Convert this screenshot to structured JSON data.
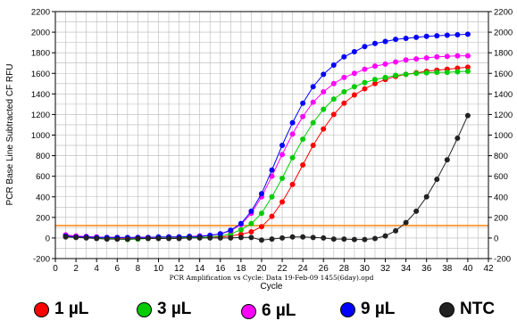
{
  "chart_data": {
    "type": "line",
    "ylabel": "PCR Base Line Subtracted CF RFU",
    "xlabel": "Cycle",
    "subtitle": "PCR Amplification vs Cycle: Data 19-Feb-09 1455(6day).opd",
    "xlim": [
      0,
      42
    ],
    "ylim": [
      -200,
      2200
    ],
    "xticks": [
      0,
      2,
      4,
      6,
      8,
      10,
      12,
      14,
      16,
      18,
      20,
      22,
      24,
      26,
      28,
      30,
      32,
      34,
      36,
      38,
      40,
      42
    ],
    "yticks": [
      -200,
      0,
      200,
      400,
      600,
      800,
      1000,
      1200,
      1400,
      1600,
      1800,
      2000,
      2200
    ],
    "threshold": 120,
    "grid": true,
    "legend_position": "bottom",
    "x": [
      1,
      2,
      3,
      4,
      5,
      6,
      7,
      8,
      9,
      10,
      11,
      12,
      13,
      14,
      15,
      16,
      17,
      18,
      19,
      20,
      21,
      22,
      23,
      24,
      25,
      26,
      27,
      28,
      29,
      30,
      31,
      32,
      33,
      34,
      35,
      36,
      37,
      38,
      39,
      40
    ],
    "series": [
      {
        "name": "1 µL",
        "color": "#ff0000",
        "values": [
          30,
          15,
          10,
          5,
          0,
          0,
          0,
          5,
          5,
          5,
          5,
          5,
          5,
          5,
          10,
          10,
          20,
          35,
          60,
          110,
          210,
          350,
          520,
          710,
          900,
          1060,
          1200,
          1310,
          1390,
          1450,
          1500,
          1540,
          1570,
          1590,
          1605,
          1620,
          1630,
          1640,
          1650,
          1660
        ]
      },
      {
        "name": "3 µL",
        "color": "#00cc00",
        "values": [
          20,
          10,
          5,
          0,
          0,
          -10,
          -15,
          -10,
          -5,
          0,
          0,
          0,
          5,
          5,
          10,
          20,
          40,
          80,
          140,
          240,
          400,
          580,
          780,
          960,
          1120,
          1250,
          1350,
          1420,
          1470,
          1510,
          1540,
          1560,
          1580,
          1590,
          1600,
          1605,
          1610,
          1610,
          1615,
          1620
        ]
      },
      {
        "name": "6 µL",
        "color": "#ff00ff",
        "values": [
          30,
          20,
          15,
          10,
          5,
          5,
          0,
          5,
          5,
          5,
          10,
          10,
          15,
          20,
          25,
          40,
          70,
          130,
          240,
          400,
          600,
          810,
          1010,
          1180,
          1320,
          1420,
          1500,
          1560,
          1600,
          1640,
          1670,
          1690,
          1710,
          1730,
          1740,
          1750,
          1760,
          1765,
          1770,
          1770
        ]
      },
      {
        "name": "9 µL",
        "color": "#0000ff",
        "values": [
          20,
          10,
          10,
          5,
          5,
          5,
          5,
          5,
          5,
          10,
          10,
          10,
          15,
          15,
          25,
          40,
          75,
          140,
          260,
          430,
          660,
          900,
          1120,
          1310,
          1470,
          1590,
          1680,
          1760,
          1810,
          1860,
          1890,
          1910,
          1930,
          1940,
          1950,
          1960,
          1965,
          1970,
          1975,
          1980
        ]
      },
      {
        "name": "NTC",
        "color": "#222222",
        "values": [
          10,
          5,
          0,
          -5,
          -10,
          -10,
          -10,
          -5,
          -5,
          -5,
          -5,
          -5,
          0,
          0,
          0,
          0,
          0,
          5,
          5,
          -20,
          -10,
          0,
          10,
          10,
          5,
          0,
          -10,
          -10,
          -15,
          -15,
          -5,
          20,
          70,
          150,
          260,
          400,
          570,
          760,
          970,
          1190
        ]
      }
    ]
  },
  "legend": [
    {
      "label": "1 µL",
      "color": "#ff0000"
    },
    {
      "label": "3 µL",
      "color": "#00cc00"
    },
    {
      "label": "6 µL",
      "color": "#ff00ff"
    },
    {
      "label": "9 µL",
      "color": "#0000ff"
    },
    {
      "label": "NTC",
      "color": "#222222"
    }
  ]
}
